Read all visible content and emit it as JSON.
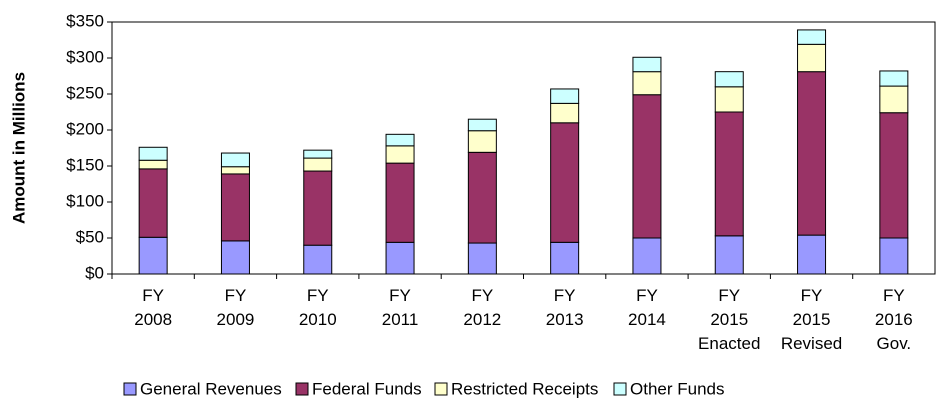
{
  "chart_data": {
    "type": "stacked_bar",
    "ylabel": "Amount in Millions",
    "categories": [
      "FY 2008",
      "FY 2009",
      "FY 2010",
      "FY 2011",
      "FY 2012",
      "FY 2013",
      "FY 2014",
      "FY 2015 Enacted",
      "FY 2015 Revised",
      "FY 2016 Gov."
    ],
    "series": [
      {
        "name": "General Revenues",
        "color": "#9999ff",
        "values": [
          51,
          46,
          40,
          44,
          43,
          44,
          50,
          53,
          54,
          50
        ]
      },
      {
        "name": "Federal Funds",
        "color": "#993366",
        "values": [
          95,
          93,
          103,
          110,
          126,
          166,
          199,
          172,
          227,
          174
        ]
      },
      {
        "name": "Restricted Receipts",
        "color": "#ffffcc",
        "values": [
          12,
          10,
          18,
          24,
          30,
          27,
          32,
          35,
          38,
          37
        ]
      },
      {
        "name": "Other Funds",
        "color": "#ccffff",
        "values": [
          18,
          19,
          11,
          16,
          16,
          20,
          20,
          21,
          20,
          21
        ]
      }
    ],
    "ylim": [
      0,
      350
    ],
    "yticks": [
      {
        "value": 0,
        "label": "$0"
      },
      {
        "value": 50,
        "label": "$50"
      },
      {
        "value": 100,
        "label": "$100"
      },
      {
        "value": 150,
        "label": "$150"
      },
      {
        "value": 200,
        "label": "$200"
      },
      {
        "value": 250,
        "label": "$250"
      },
      {
        "value": 300,
        "label": "$300"
      },
      {
        "value": 350,
        "label": "$350"
      }
    ],
    "grid": false,
    "legend": "bottom"
  }
}
